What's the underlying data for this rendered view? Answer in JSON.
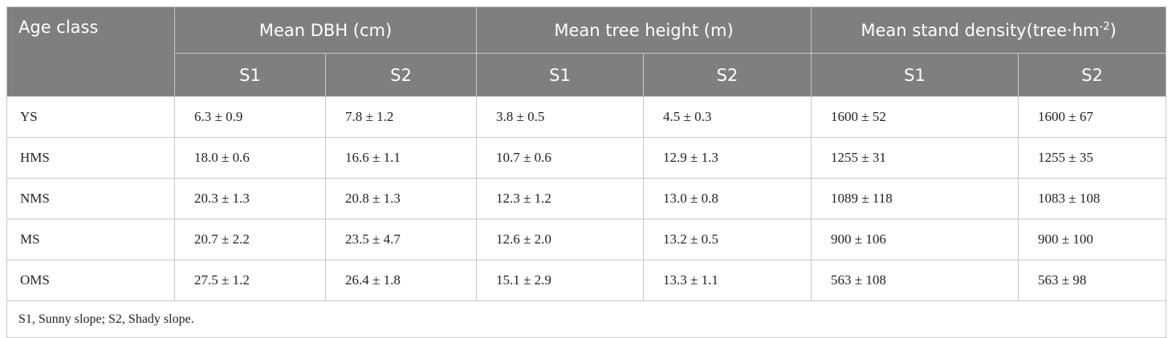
{
  "table": {
    "header": {
      "age_class": "Age class",
      "groups": [
        {
          "text": "Mean DBH (cm)"
        },
        {
          "text": "Mean tree height (m)"
        },
        {
          "text": "Mean stand density(tree·hm",
          "sup": "-2",
          "after": ")"
        }
      ],
      "subheaders": [
        "S1",
        "S2",
        "S1",
        "S2",
        "S1",
        "S2"
      ]
    },
    "rows": [
      [
        "YS",
        "6.3 ± 0.9",
        "7.8 ± 1.2",
        "3.8 ± 0.5",
        "4.5 ± 0.3",
        "1600 ± 52",
        "1600 ± 67"
      ],
      [
        "HMS",
        "18.0 ± 0.6",
        "16.6 ± 1.1",
        "10.7 ± 0.6",
        "12.9 ± 1.3",
        "1255 ± 31",
        "1255 ± 35"
      ],
      [
        "NMS",
        "20.3 ± 1.3",
        "20.8 ± 1.3",
        "12.3 ± 1.2",
        "13.0 ± 0.8",
        "1089 ± 118",
        "1083 ± 108"
      ],
      [
        "MS",
        "20.7 ± 2.2",
        "23.5 ± 4.7",
        "12.6 ± 2.0",
        "13.2 ± 0.5",
        "900 ± 106",
        "900 ± 100"
      ],
      [
        "OMS",
        "27.5 ± 1.2",
        "26.4 ± 1.8",
        "15.1 ± 2.9",
        "13.3 ± 1.1",
        "563 ± 108",
        "563 ± 98"
      ]
    ],
    "footnote": "S1, Sunny slope; S2, Shady slope."
  }
}
